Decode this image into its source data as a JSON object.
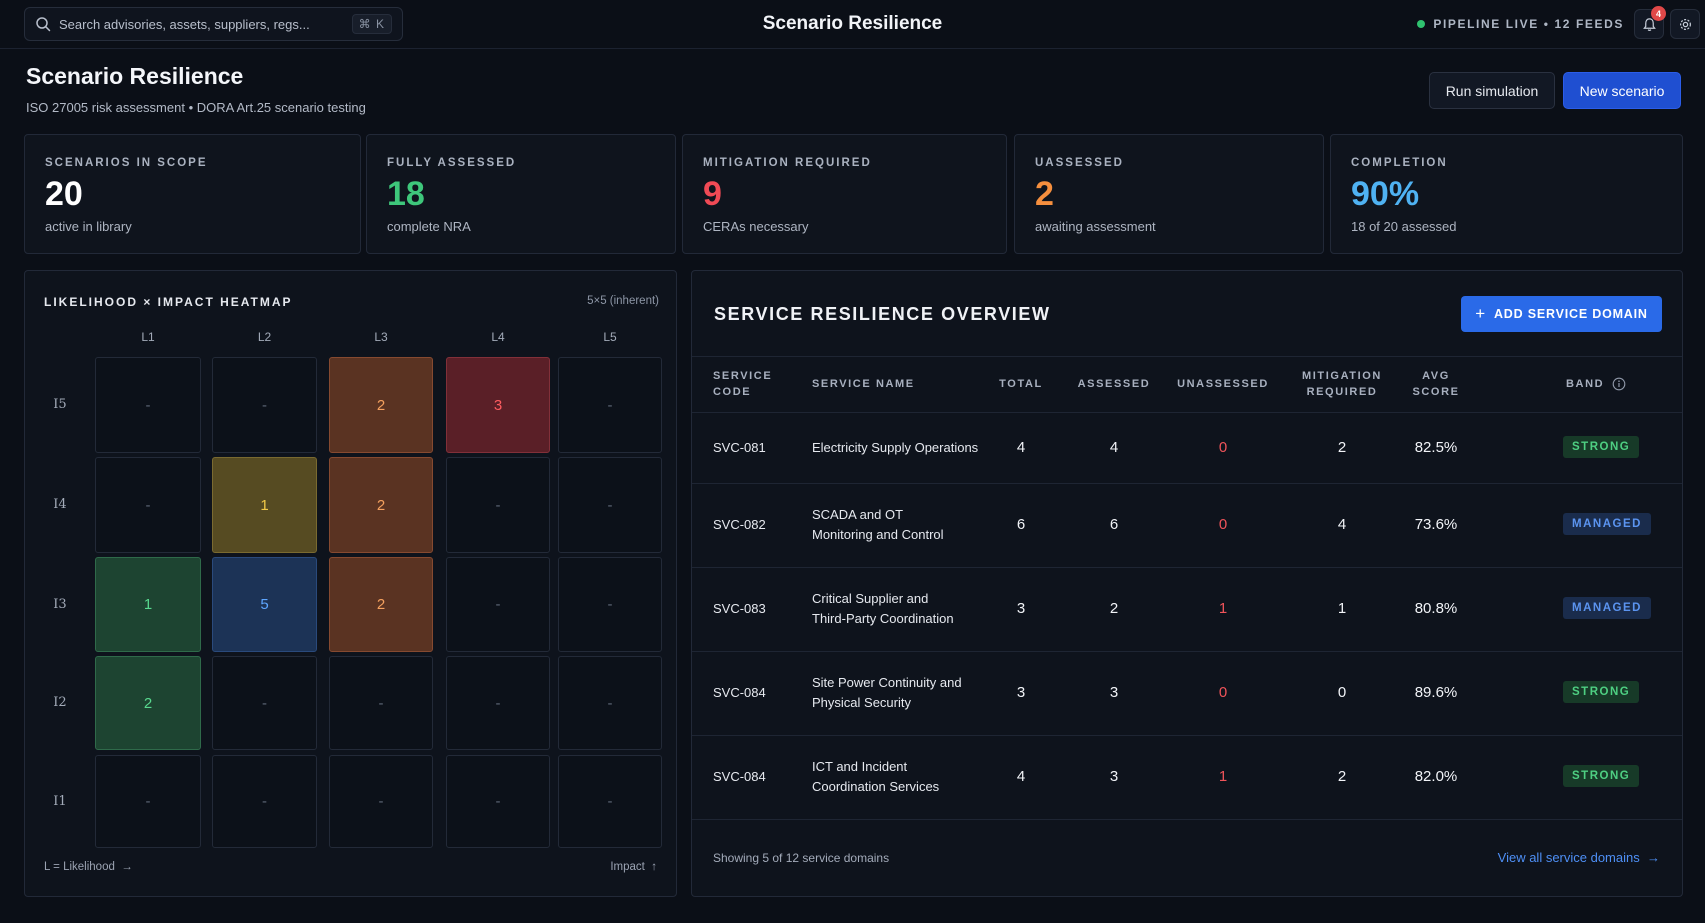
{
  "topbar": {
    "search_placeholder": "Search advisories, assets, suppliers, regs...",
    "shortcut": "⌘ K",
    "title": "Scenario Resilience",
    "pipeline_status": "PIPELINE LIVE • 12 FEEDS",
    "notification_count": "4",
    "status_color": "#2fc26f"
  },
  "header": {
    "title": "Scenario Resilience",
    "subtitle": "ISO 27005 risk assessment • DORA Art.25 scenario testing",
    "run_label": "Run simulation",
    "new_label": "New scenario"
  },
  "stats": [
    {
      "label": "SCENARIOS IN SCOPE",
      "value": "20",
      "caption": "active in library",
      "color": "#ffffff"
    },
    {
      "label": "FULLY ASSESSED",
      "value": "18",
      "caption": "complete NRA",
      "color": "#3ec77b"
    },
    {
      "label": "MITIGATION REQUIRED",
      "value": "9",
      "caption": "CERAs necessary",
      "color": "#f04a55"
    },
    {
      "label": "UASSESSED",
      "value": "2",
      "caption": "awaiting assessment",
      "color": "#f58f3e"
    },
    {
      "label": "COMPLETION",
      "value": "90%",
      "caption": "18 of 20 assessed",
      "color": "#4fb2f2"
    }
  ],
  "heatmap": {
    "title": "LIKELIHOOD × IMPACT HEATMAP",
    "note": "5×5 (inherent)",
    "columns": [
      "L1",
      "L2",
      "L3",
      "L4",
      "L5"
    ],
    "rows": [
      {
        "label": "I5",
        "cells": [
          "-",
          "-",
          "2",
          "3",
          "-"
        ]
      },
      {
        "label": "I4",
        "cells": [
          "-",
          "1",
          "2",
          "-",
          "-"
        ]
      },
      {
        "label": "I3",
        "cells": [
          "1",
          "5",
          "2",
          "-",
          "-"
        ]
      },
      {
        "label": "I2",
        "cells": [
          "2",
          "-",
          "-",
          "-",
          "-"
        ]
      },
      {
        "label": "I1",
        "cells": [
          "-",
          "-",
          "-",
          "-",
          "-"
        ]
      }
    ],
    "footer_left": "L = Likelihood",
    "footer_right": "Impact"
  },
  "overview": {
    "title": "SERVICE RESILIENCE OVERVIEW",
    "add_label": "ADD SERVICE DOMAIN",
    "headers": {
      "code": [
        "SERVICE",
        "CODE"
      ],
      "name": "SERVICE NAME",
      "total": "TOTAL",
      "assessed": "ASSESSED",
      "unassessed": "UNASSESSED",
      "mitigation": [
        "MITIGATION",
        "REQUIRED"
      ],
      "avg": [
        "AVG",
        "SCORE"
      ],
      "band": "BAND"
    },
    "rows": [
      {
        "code": "SVC-081",
        "name": [
          "Electricity Supply Operations"
        ],
        "total": "4",
        "assessed": "4",
        "unassessed": "0",
        "mitigation": "2",
        "avg": "82.5%",
        "band": "STRONG"
      },
      {
        "code": "SVC-082",
        "name": [
          "SCADA and OT",
          "Monitoring and Control"
        ],
        "total": "6",
        "assessed": "6",
        "unassessed": "0",
        "mitigation": "4",
        "avg": "73.6%",
        "band": "MANAGED"
      },
      {
        "code": "SVC-083",
        "name": [
          "Critical Supplier and",
          "Third-Party Coordination"
        ],
        "total": "3",
        "assessed": "2",
        "unassessed": "1",
        "mitigation": "1",
        "avg": "80.8%",
        "band": "MANAGED"
      },
      {
        "code": "SVC-084",
        "name": [
          "Site Power Continuity and",
          "Physical Security"
        ],
        "total": "3",
        "assessed": "3",
        "unassessed": "0",
        "mitigation": "0",
        "avg": "89.6%",
        "band": "STRONG"
      },
      {
        "code": "SVC-084",
        "name": [
          "ICT and Incident",
          "Coordination Services"
        ],
        "total": "4",
        "assessed": "3",
        "unassessed": "1",
        "mitigation": "2",
        "avg": "82.0%",
        "band": "STRONG"
      }
    ],
    "footer": "Showing 5 of 12 service domains",
    "link": "View all service domains"
  }
}
